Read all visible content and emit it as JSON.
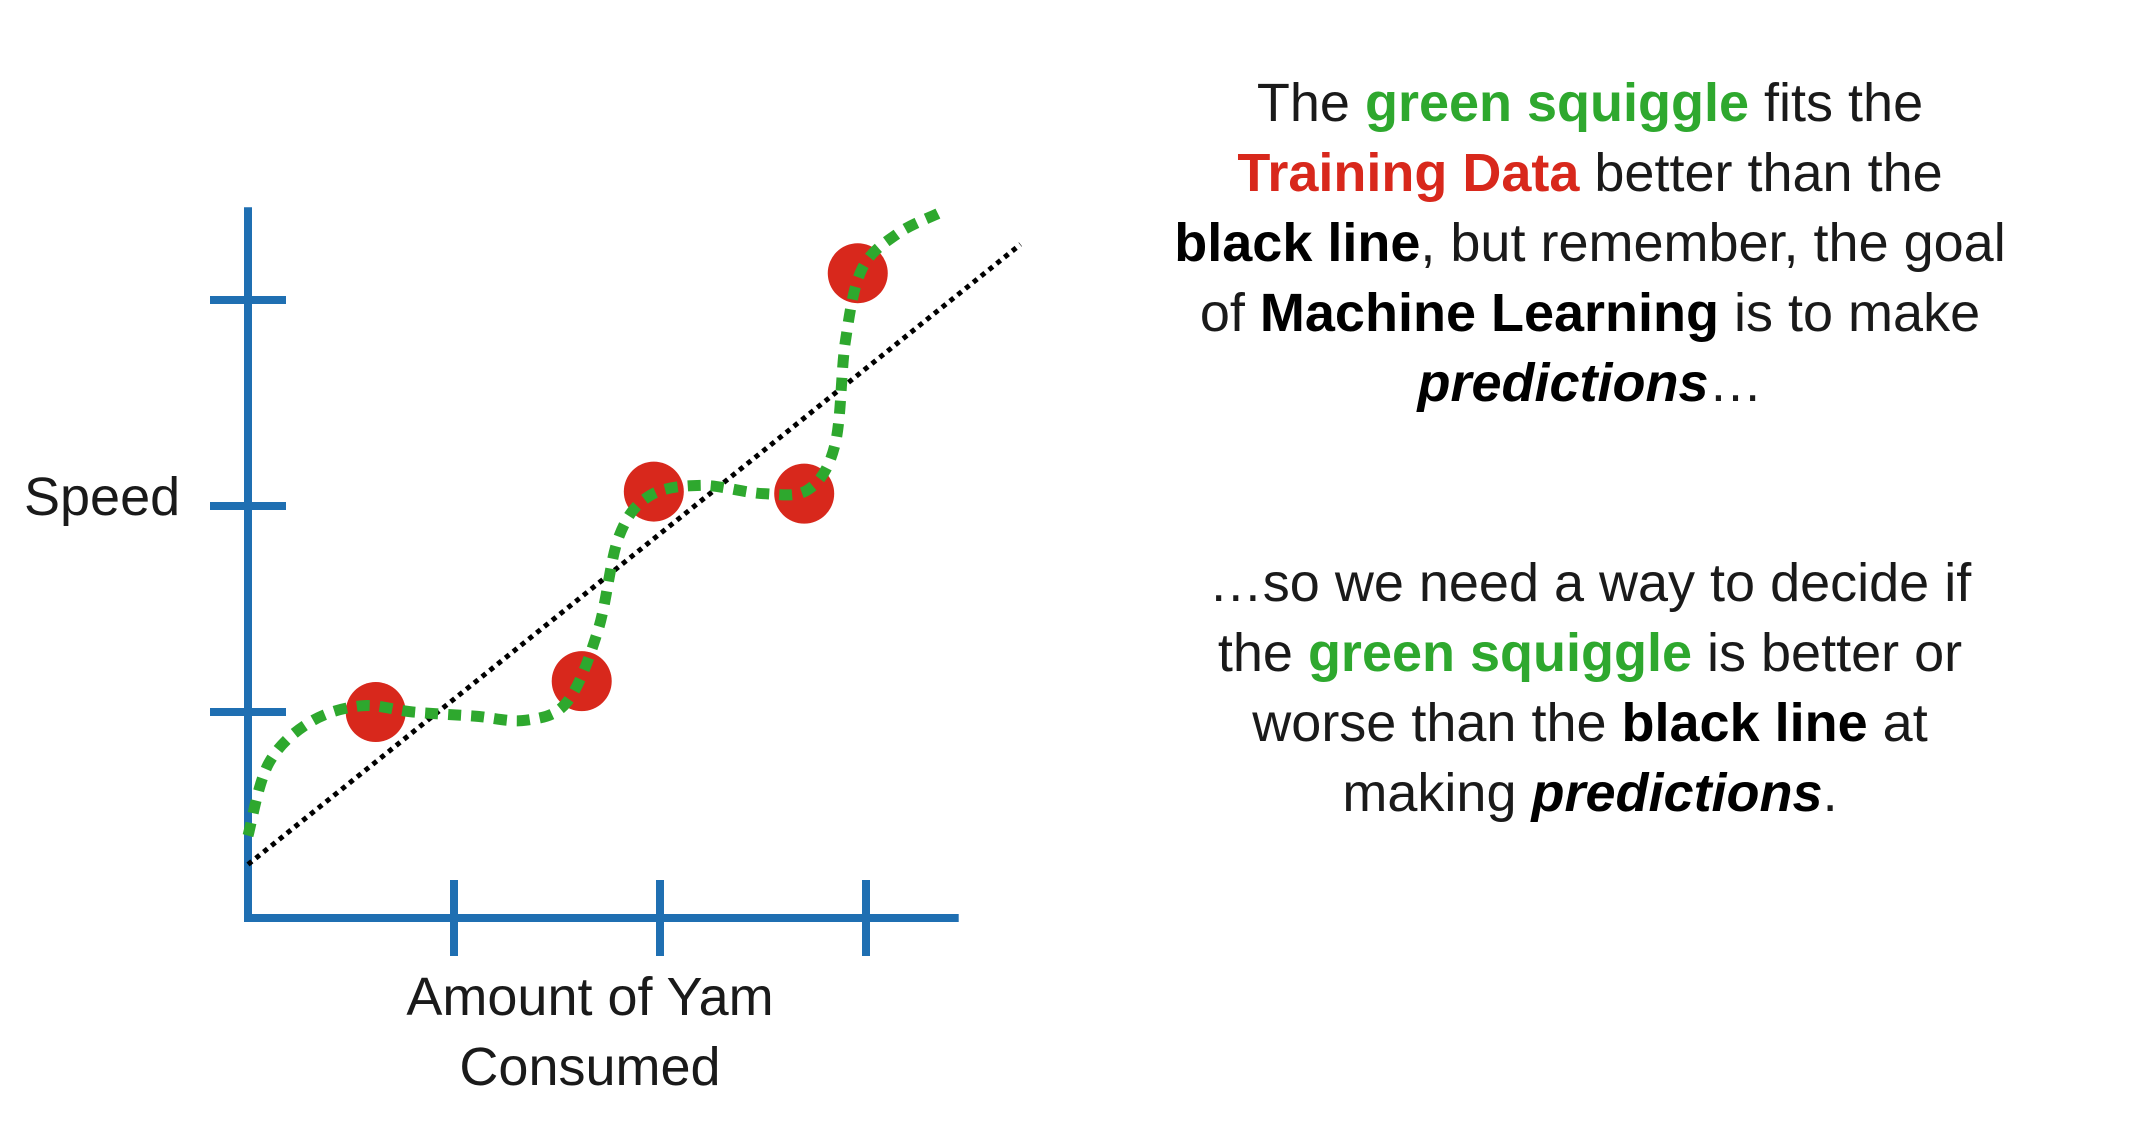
{
  "colors": {
    "axis": "#1f6fb2",
    "squiggle": "#2ea82e",
    "points": "#d8281c",
    "fit_line": "#000000",
    "text": "#1a1a1a"
  },
  "diagram": {
    "y_axis_label": "Speed",
    "x_axis_label": "Amount of Yam\nConsumed",
    "y_ticks": 3,
    "x_ticks": 3,
    "training_points": [
      {
        "x": 0.62,
        "y": 1.0
      },
      {
        "x": 1.62,
        "y": 1.15
      },
      {
        "x": 1.97,
        "y": 2.07
      },
      {
        "x": 2.7,
        "y": 2.06
      },
      {
        "x": 2.96,
        "y": 3.13
      }
    ],
    "x_range": [
      0,
      3.45
    ],
    "y_range": [
      0,
      3.45
    ],
    "black_line": {
      "x_start": 0.0,
      "y_start": 0.26,
      "x_end": 3.75,
      "y_end": 3.27
    },
    "green_squiggle": [
      [
        0.0,
        0.4
      ],
      [
        0.1,
        0.75
      ],
      [
        0.3,
        0.95
      ],
      [
        0.55,
        1.03
      ],
      [
        0.8,
        1.0
      ],
      [
        1.1,
        0.98
      ],
      [
        1.35,
        0.96
      ],
      [
        1.55,
        1.05
      ],
      [
        1.7,
        1.4
      ],
      [
        1.8,
        1.85
      ],
      [
        1.95,
        2.05
      ],
      [
        2.2,
        2.1
      ],
      [
        2.5,
        2.06
      ],
      [
        2.72,
        2.08
      ],
      [
        2.85,
        2.3
      ],
      [
        2.9,
        2.8
      ],
      [
        2.98,
        3.15
      ],
      [
        3.15,
        3.32
      ],
      [
        3.35,
        3.42
      ]
    ]
  },
  "text": {
    "block1": {
      "l1_a": "The ",
      "l1_b": "green squiggle",
      "l1_c": " fits the",
      "l2_a": "Training Data",
      "l2_b": " better than the",
      "l3_a": "black line",
      "l3_b": ", but remember, the goal",
      "l4_a": "of ",
      "l4_b": "Machine Learning",
      "l4_c": " is to make",
      "l5_a": "predictions",
      "l5_b": "…"
    },
    "block2": {
      "l1": "…so we need a way to decide if",
      "l2_a": "the ",
      "l2_b": "green squiggle",
      "l2_c": " is better or",
      "l3_a": "worse than the ",
      "l3_b": "black line",
      "l3_c": " at",
      "l4_a": "making ",
      "l4_b": "predictions",
      "l4_c": "."
    }
  }
}
